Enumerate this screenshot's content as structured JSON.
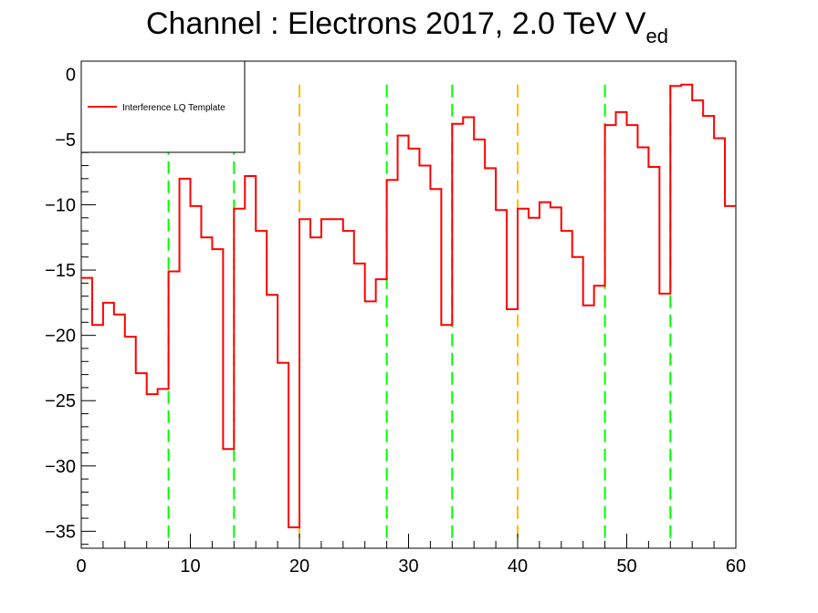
{
  "chart_data": {
    "type": "line",
    "title": "Channel : Electrons 2017, 2.0 TeV V",
    "title_subscript": "ed",
    "xlabel": "",
    "ylabel": "",
    "xlim": [
      0,
      60
    ],
    "ylim": [
      -36.3,
      1.0
    ],
    "x_ticks": [
      "0",
      "10",
      "20",
      "30",
      "40",
      "50",
      "60"
    ],
    "y_ticks": [
      "0",
      "−5",
      "−10",
      "−15",
      "−20",
      "−25",
      "−30",
      "−35"
    ],
    "grid": false,
    "legend_position": "top-left",
    "series": [
      {
        "name": "Interference LQ Template",
        "color": "#ff0000",
        "style": "step",
        "bin_width": 1,
        "x": [
          0,
          1,
          2,
          3,
          4,
          5,
          6,
          7,
          8,
          9,
          10,
          11,
          12,
          13,
          14,
          15,
          16,
          17,
          18,
          19,
          20,
          21,
          22,
          23,
          24,
          25,
          26,
          27,
          28,
          29,
          30,
          31,
          32,
          33,
          34,
          35,
          36,
          37,
          38,
          39,
          40,
          41,
          42,
          43,
          44,
          45,
          46,
          47,
          48,
          49,
          50,
          51,
          52,
          53,
          54,
          55,
          56,
          57,
          58,
          59
        ],
        "values": [
          -15.6,
          -19.2,
          -17.5,
          -18.4,
          -20.1,
          -22.9,
          -24.5,
          -24.1,
          -15.1,
          -8.0,
          -10.1,
          -12.5,
          -13.4,
          -28.7,
          -10.3,
          -7.8,
          -12.0,
          -16.9,
          -22.1,
          -34.7,
          -11.1,
          -12.5,
          -11.1,
          -11.1,
          -12.0,
          -14.5,
          -17.4,
          -15.7,
          -8.1,
          -4.7,
          -5.7,
          -7.0,
          -8.8,
          -19.2,
          -3.8,
          -3.3,
          -5.0,
          -7.2,
          -10.4,
          -18.0,
          -10.3,
          -11.0,
          -9.8,
          -10.2,
          -12.0,
          -14.0,
          -17.7,
          -16.2,
          -3.9,
          -2.9,
          -3.9,
          -5.6,
          -7.1,
          -16.8,
          -0.9,
          -0.8,
          -2.0,
          -3.2,
          -4.9,
          -10.1
        ]
      }
    ],
    "reference_lines": [
      {
        "x": 8,
        "color": "#00ff00"
      },
      {
        "x": 14,
        "color": "#00ff00"
      },
      {
        "x": 20,
        "color": "#ffbb00"
      },
      {
        "x": 28,
        "color": "#00ff00"
      },
      {
        "x": 34,
        "color": "#00ff00"
      },
      {
        "x": 40,
        "color": "#ffbb00"
      },
      {
        "x": 48,
        "color": "#00ff00"
      },
      {
        "x": 54,
        "color": "#00ff00"
      }
    ],
    "reference_line_range": [
      -35.5,
      -0.8
    ]
  }
}
